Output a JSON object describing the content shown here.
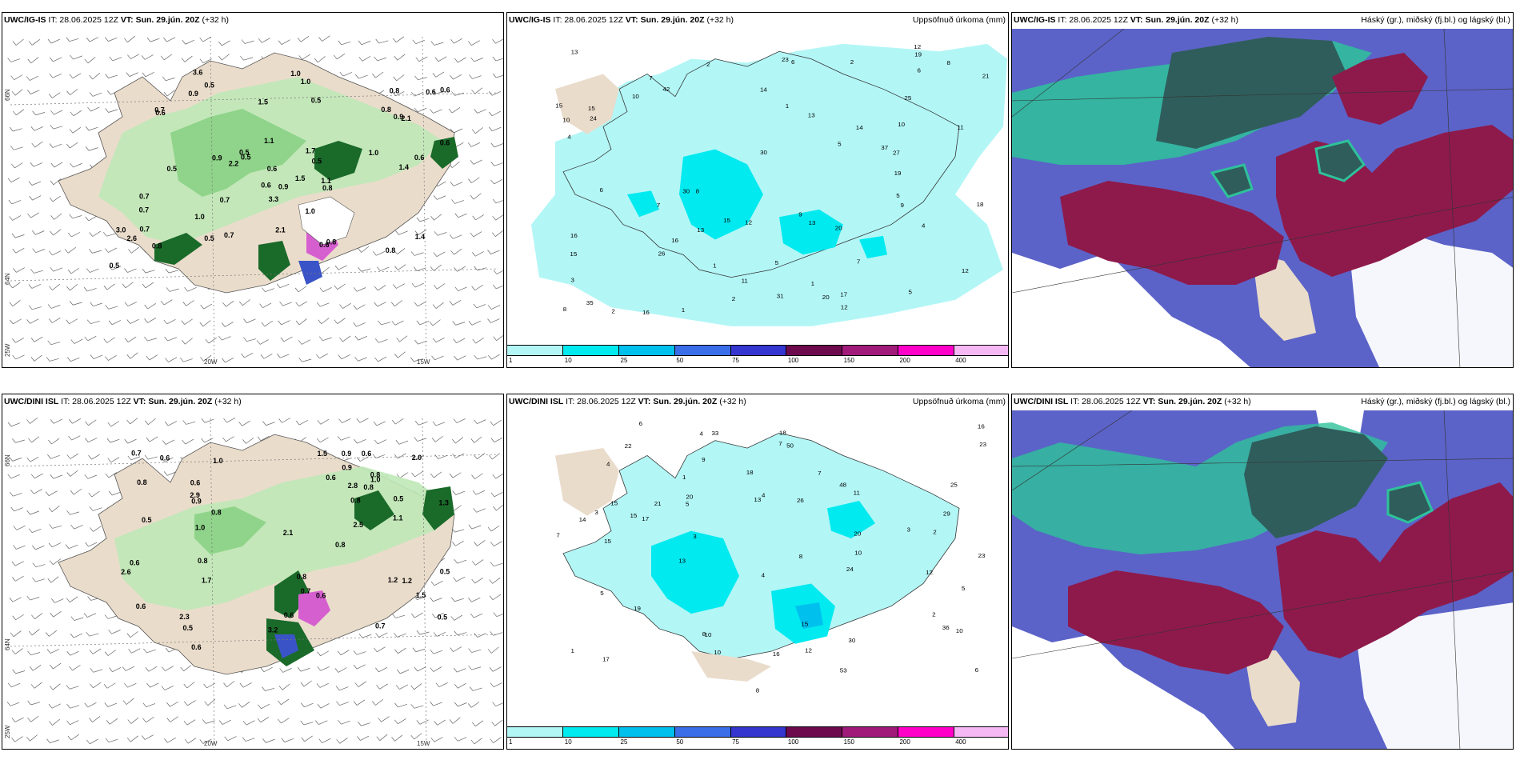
{
  "rows": [
    {
      "wind_panel": {
        "title_model": "UWC/IG-IS",
        "title_it": "IT: 28.06.2025 12Z",
        "title_vt": "VT: Sun. 29.jún. 20Z",
        "title_lead": "(+32 h)",
        "lat_top": "66N",
        "lat_bottom": "64N",
        "lat_corner": "25W",
        "lon_left": "20W",
        "lon_right": "15W",
        "labels": [
          "0.9",
          "0.6",
          "0.5",
          "0.8",
          "0.7",
          "0.6",
          "0.5",
          "0.5",
          "0.7",
          "0.6",
          "0.8",
          "0.5",
          "0.7",
          "0.6",
          "0.7",
          "1.0",
          "0.8",
          "0.9",
          "1.0",
          "0.6",
          "0.7",
          "0.5",
          "1.0",
          "1.1",
          "0.6",
          "1.4",
          "1.0",
          "2.6",
          "2.2",
          "0.8",
          "1.5",
          "3.3",
          "2.1",
          "3.6",
          "1.0",
          "0.5",
          "0.9",
          "0.5",
          "0.6",
          "0.8",
          "0.7",
          "1.5",
          "0.6",
          "0.5",
          "1.4",
          "2.1",
          "1.7",
          "3.0",
          "1.1",
          "0.8",
          "0.9"
        ]
      },
      "precip_panel": {
        "title_model": "UWC/IG-IS",
        "title_it": "IT: 28.06.2025 12Z",
        "title_vt": "VT: Sun. 29.jún. 20Z",
        "title_lead": "(+32 h)",
        "field_title": "Uppsöfnuð úrkoma (mm)",
        "labels": [
          "1",
          "1",
          "1",
          "2",
          "2",
          "4",
          "5",
          "5",
          "4",
          "6",
          "6",
          "8",
          "9",
          "7",
          "10",
          "11",
          "10",
          "13",
          "12",
          "15",
          "15",
          "19",
          "13",
          "14",
          "16",
          "20",
          "26",
          "30",
          "24",
          "17",
          "27",
          "37",
          "35",
          "23",
          "18",
          "25",
          "16",
          "15",
          "16",
          "20",
          "15",
          "13",
          "14",
          "42",
          "30",
          "31",
          "21",
          "12",
          "11",
          "12",
          "10",
          "19",
          "12",
          "7",
          "8",
          "5",
          "3",
          "2",
          "2",
          "1",
          "5",
          "6",
          "8",
          "7",
          "9",
          "13"
        ],
        "colorbar_ticks": [
          "1",
          "10",
          "25",
          "50",
          "75",
          "100",
          "150",
          "200",
          "400"
        ],
        "colorbar_colors": [
          "#b3f6f6",
          "#00eaf0",
          "#00c0ee",
          "#3a6ee8",
          "#3535d0",
          "#6d0a4e",
          "#a01a7a",
          "#ff00c8",
          "#f6b8f4"
        ]
      },
      "cloud_panel": {
        "title_model": "UWC/IG-IS",
        "title_it": "IT: 28.06.2025 12Z",
        "title_vt": "VT: Sun. 29.jún. 20Z",
        "title_lead": "(+32 h)",
        "field_title": "Háský (gr.), miðský (fj.bl.) og lágský (bl.)"
      }
    },
    {
      "wind_panel": {
        "title_model": "UWC/DINI ISL",
        "title_it": "IT: 28.06.2025 12Z",
        "title_vt": "VT: Sun. 29.jún. 20Z",
        "title_lead": "(+32 h)",
        "lat_top": "66N",
        "lat_bottom": "64N",
        "lat_corner": "25W",
        "lon_left": "20W",
        "lon_right": "15W",
        "labels": [
          "0.8",
          "0.6",
          "0.5",
          "0.6",
          "0.5",
          "0.6",
          "0.8",
          "0.5",
          "0.8",
          "0.6",
          "1.2",
          "0.8",
          "3.2",
          "0.5",
          "0.6",
          "0.8",
          "0.6",
          "0.8",
          "0.9",
          "1.0",
          "0.7",
          "0.6",
          "1.5",
          "1.3",
          "1.2",
          "1.0",
          "0.9",
          "0.8",
          "2.5",
          "0.6",
          "0.8",
          "1.5",
          "0.7",
          "2.0",
          "1.7",
          "2.8",
          "1.0",
          "2.6",
          "0.5",
          "0.6",
          "2.9",
          "2.1",
          "1.1",
          "2.3",
          "0.7",
          "0.9"
        ]
      },
      "precip_panel": {
        "title_model": "UWC/DINI ISL",
        "title_it": "IT: 28.06.2025 12Z",
        "title_vt": "VT: Sun. 29.jún. 20Z",
        "title_lead": "(+32 h)",
        "field_title": "Uppsöfnuð úrkoma (mm)",
        "labels": [
          "3",
          "5",
          "5",
          "4",
          "4",
          "6",
          "8",
          "9",
          "7",
          "11",
          "12",
          "10",
          "15",
          "10",
          "18",
          "15",
          "17",
          "13",
          "16",
          "20",
          "16",
          "14",
          "15",
          "23",
          "30",
          "23",
          "21",
          "19",
          "18",
          "12",
          "29",
          "36",
          "33",
          "22",
          "24",
          "25",
          "20",
          "17",
          "15",
          "48",
          "50",
          "53",
          "26",
          "13",
          "7",
          "8",
          "10",
          "4",
          "4",
          "3",
          "2",
          "2",
          "3",
          "1",
          "1",
          "6",
          "5",
          "10",
          "8",
          "7"
        ],
        "colorbar_ticks": [
          "1",
          "10",
          "25",
          "50",
          "75",
          "100",
          "150",
          "200",
          "400"
        ],
        "colorbar_colors": [
          "#b3f6f6",
          "#00eaf0",
          "#00c0ee",
          "#3a6ee8",
          "#3535d0",
          "#6d0a4e",
          "#a01a7a",
          "#ff00c8",
          "#f6b8f4"
        ]
      },
      "cloud_panel": {
        "title_model": "UWC/DINI ISL",
        "title_it": "IT: 28.06.2025 12Z",
        "title_vt": "VT: Sun. 29.jún. 20Z",
        "title_lead": "(+32 h)",
        "field_title": "Háský (gr.), miðský (fj.bl.) og lágský (bl.)"
      }
    }
  ]
}
